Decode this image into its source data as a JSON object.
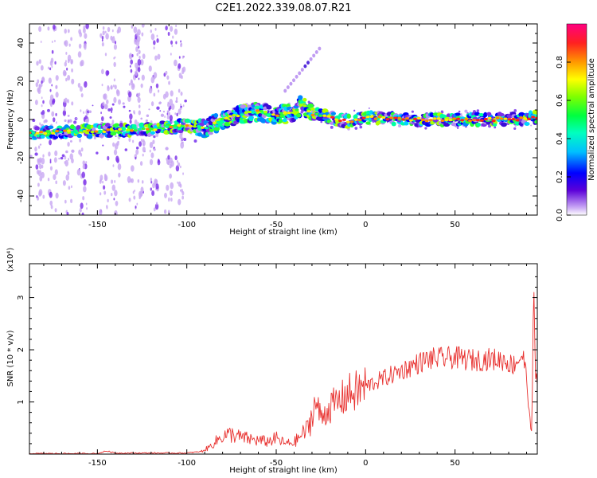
{
  "title": "C2E1.2022.339.08.07.R21",
  "chart_data": [
    {
      "type": "heatmap",
      "xlabel": "Height of straight line (km)",
      "ylabel": "Frequency (Hz)",
      "xlim": [
        -188,
        96
      ],
      "ylim": [
        -50,
        50
      ],
      "x_ticks": [
        -150,
        -100,
        -50,
        0,
        50
      ],
      "y_ticks": [
        -40,
        -20,
        0,
        20,
        40
      ],
      "colorbar": {
        "label": "Normalized spectral amplitude",
        "range": [
          0.0,
          1.0
        ],
        "ticks": [
          "0.0",
          "0.2",
          "0.4",
          "0.6",
          "0.8"
        ],
        "tick_values": [
          0.0,
          0.2,
          0.4,
          0.6,
          0.8
        ]
      },
      "ridge": {
        "x": [
          -188,
          -150,
          -120,
          -100,
          -90,
          -80,
          -70,
          -60,
          -50,
          -40,
          -35,
          -30,
          -20,
          -10,
          0,
          20,
          50,
          80,
          96
        ],
        "frequency": [
          -7,
          -6,
          -5,
          -3,
          -5,
          0,
          3,
          4,
          2,
          4,
          8,
          3,
          1,
          -1,
          1,
          0,
          0,
          0,
          1
        ]
      },
      "faint_streak": {
        "x": [
          -45,
          -25
        ],
        "frequency": [
          15,
          38
        ]
      }
    },
    {
      "type": "line",
      "xlabel": "Height of straight line (km)",
      "ylabel": "SNR (10 * v/v)",
      "scale_label": "(x10⁴)",
      "xlim": [
        -188,
        96
      ],
      "ylim": [
        0,
        3.65
      ],
      "x_ticks": [
        -150,
        -100,
        -50,
        0,
        50
      ],
      "y_ticks": [
        1,
        2,
        3
      ],
      "series": [
        {
          "color": "#e8312f",
          "x": [
            -188,
            -150,
            -145,
            -140,
            -120,
            -100,
            -92,
            -88,
            -80,
            -75,
            -70,
            -62,
            -55,
            -50,
            -45,
            -40,
            -32,
            -28,
            -25,
            -20,
            -15,
            -10,
            -5,
            0,
            10,
            20,
            30,
            35,
            50,
            60,
            70,
            78,
            82,
            88,
            90,
            92,
            93,
            94,
            95,
            96
          ],
          "y": [
            0.01,
            0.01,
            0.06,
            0.02,
            0.02,
            0.02,
            0.05,
            0.12,
            0.35,
            0.38,
            0.32,
            0.27,
            0.24,
            0.3,
            0.2,
            0.22,
            0.5,
            1.0,
            0.7,
            0.9,
            1.0,
            1.15,
            1.2,
            1.3,
            1.45,
            1.6,
            1.75,
            1.82,
            1.85,
            1.8,
            1.82,
            1.8,
            1.7,
            1.9,
            1.45,
            0.6,
            0.35,
            3.6,
            1.6,
            1.2
          ]
        }
      ]
    }
  ]
}
